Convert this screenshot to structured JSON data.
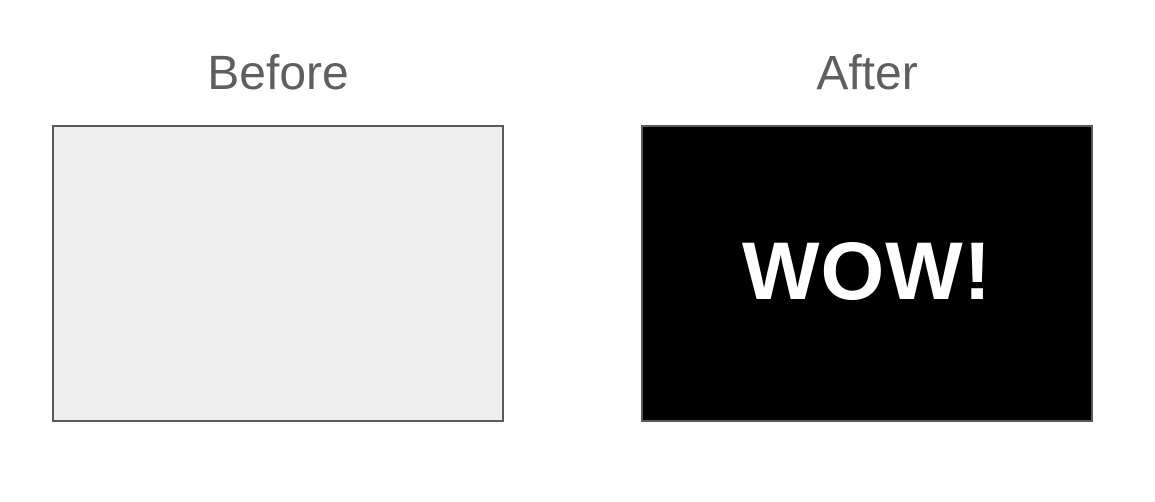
{
  "before": {
    "title": "Before",
    "box_color": "#eeeeee"
  },
  "after": {
    "title": "After",
    "box_color": "#000000",
    "text": "WOW!",
    "text_color": "#ffffff"
  },
  "colors": {
    "title_text": "#5f5f5f",
    "border": "#5a5a5a"
  }
}
